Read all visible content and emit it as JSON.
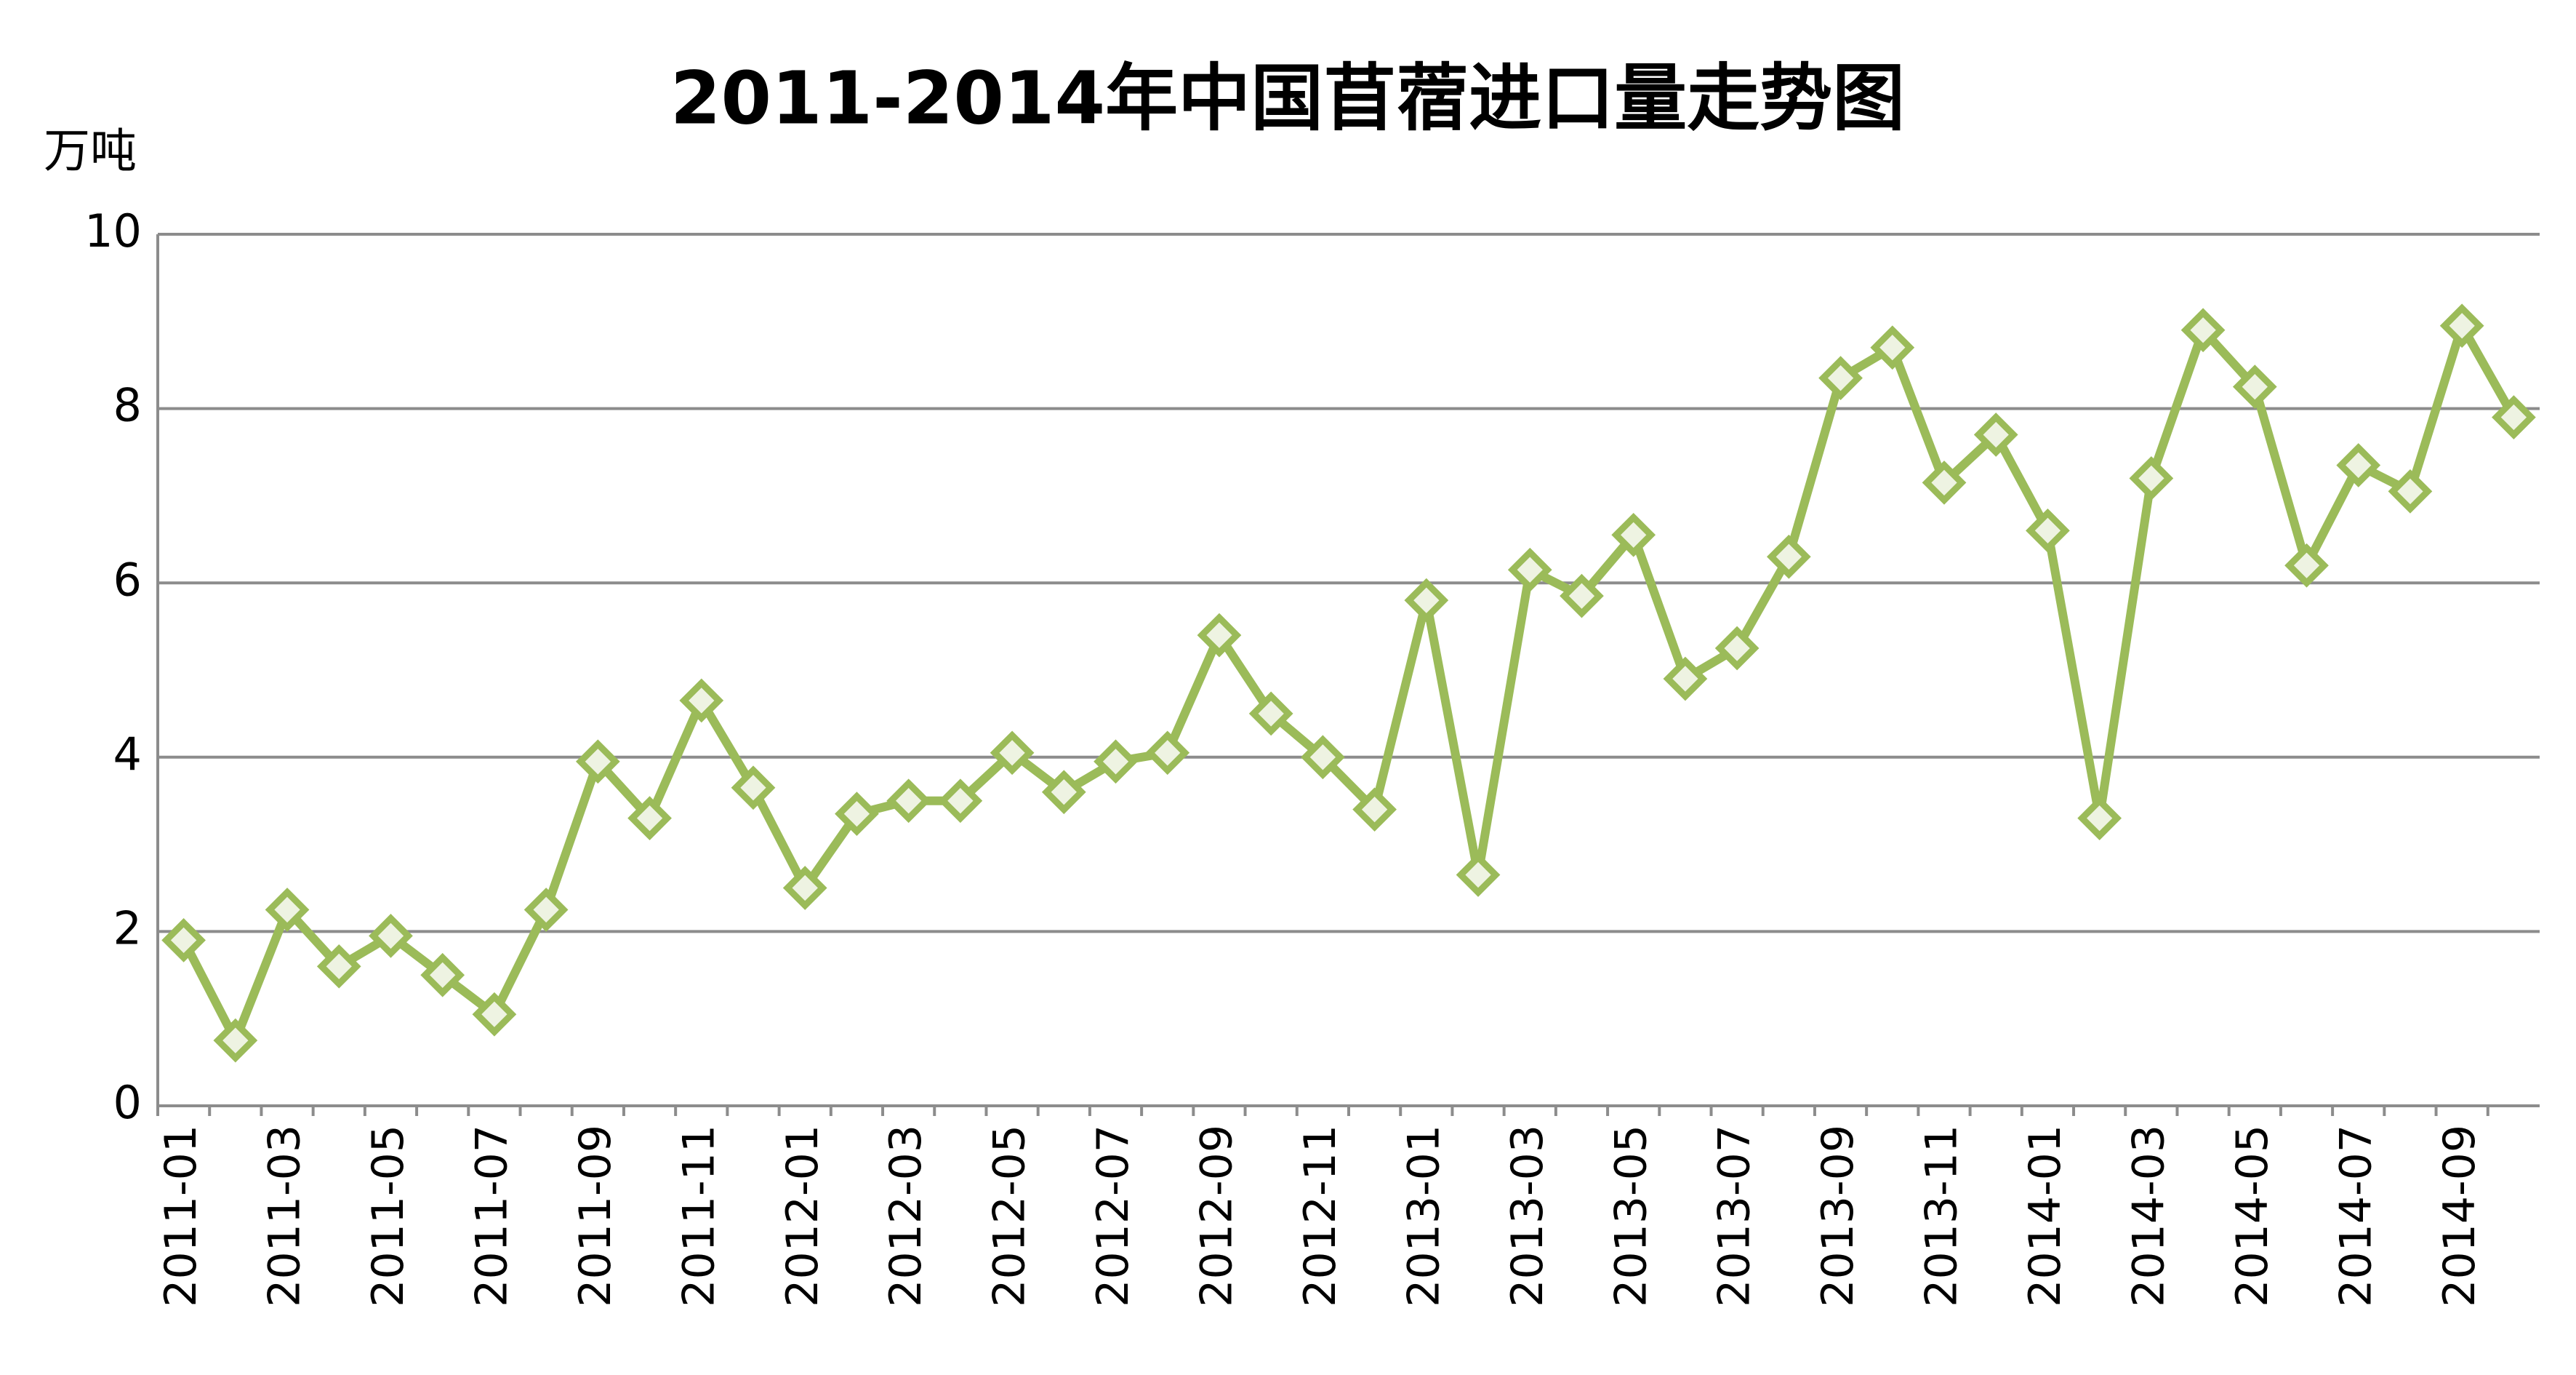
{
  "chart_data": {
    "type": "line",
    "title": "2011-2014年中国苜蓿进口量走势图",
    "y_label": "万吨",
    "categories": [
      "2011-01",
      null,
      "2011-03",
      null,
      "2011-05",
      null,
      "2011-07",
      null,
      "2011-09",
      null,
      "2011-11",
      null,
      "2012-01",
      null,
      "2012-03",
      null,
      "2012-05",
      null,
      "2012-07",
      null,
      "2012-09",
      null,
      "2012-11",
      null,
      "2013-01",
      null,
      "2013-03",
      null,
      "2013-05",
      null,
      "2013-07",
      null,
      "2013-09",
      null,
      "2013-11",
      null,
      "2014-01",
      null,
      "2014-03",
      null,
      "2014-05",
      null,
      "2014-07",
      null,
      "2014-09",
      null
    ],
    "series": [
      {
        "name": "进口量",
        "color": "#9bbb59",
        "values": [
          1.9,
          0.75,
          2.25,
          1.6,
          1.95,
          1.5,
          1.05,
          2.25,
          3.95,
          3.3,
          4.65,
          3.65,
          2.5,
          3.35,
          3.5,
          3.5,
          4.05,
          3.6,
          3.95,
          4.05,
          5.4,
          4.5,
          4.0,
          3.4,
          5.8,
          2.65,
          6.15,
          5.85,
          6.55,
          4.9,
          5.25,
          6.3,
          8.35,
          8.7,
          7.15,
          7.7,
          6.6,
          3.3,
          7.2,
          8.9,
          8.25,
          6.2,
          7.35,
          7.05,
          8.95,
          7.9
        ]
      }
    ],
    "ylim": [
      0,
      10
    ],
    "yticks": [
      0,
      2,
      4,
      6,
      8,
      10
    ],
    "grid": true
  }
}
